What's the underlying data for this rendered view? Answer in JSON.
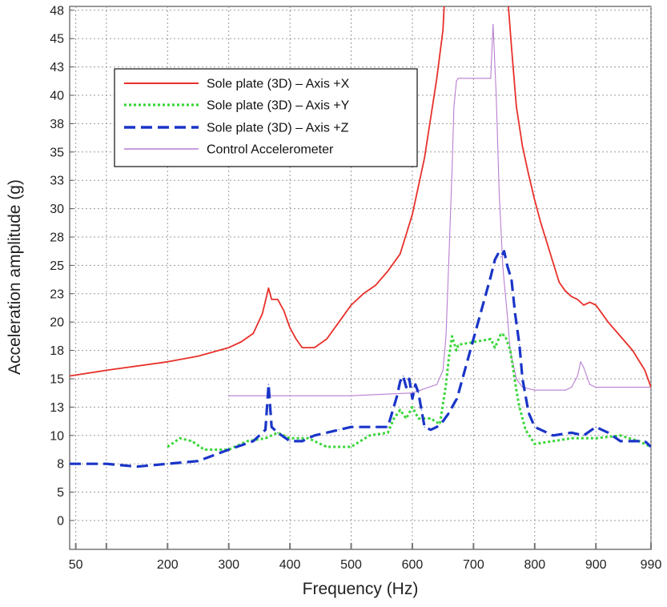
{
  "chart_data": {
    "type": "line",
    "xlabel": "Frequency (Hz)",
    "ylabel": "Acceleration amplitude (g)",
    "xlim": [
      40,
      990
    ],
    "x_ticks": [
      50,
      100,
      200,
      300,
      400,
      500,
      600,
      700,
      800,
      900,
      990
    ],
    "x_tick_labels": [
      "50",
      "",
      "200",
      "300",
      "400",
      "500",
      "600",
      "700",
      "800",
      "900",
      "990"
    ],
    "y_tick_labels": [
      "0",
      "5",
      "8",
      "10",
      "13",
      "15",
      "18",
      "20",
      "23",
      "25",
      "28",
      "30",
      "33",
      "35",
      "38",
      "40",
      "43",
      "45",
      "48"
    ],
    "y_scale": "index-of-labels (non-uniform)",
    "grid": true,
    "legend_position": "top-left",
    "series": [
      {
        "name": "Sole plate (3D) – Axis +X",
        "color": "#e8302a",
        "style": "solid",
        "points": [
          [
            40,
            5.1
          ],
          [
            100,
            5.3
          ],
          [
            200,
            5.6
          ],
          [
            250,
            5.8
          ],
          [
            300,
            6.1
          ],
          [
            320,
            6.3
          ],
          [
            340,
            6.6
          ],
          [
            355,
            7.3
          ],
          [
            365,
            8.2
          ],
          [
            370,
            7.8
          ],
          [
            380,
            7.8
          ],
          [
            390,
            7.4
          ],
          [
            400,
            6.8
          ],
          [
            410,
            6.4
          ],
          [
            420,
            6.1
          ],
          [
            440,
            6.1
          ],
          [
            460,
            6.4
          ],
          [
            480,
            7.0
          ],
          [
            500,
            7.6
          ],
          [
            520,
            8.0
          ],
          [
            540,
            8.3
          ],
          [
            560,
            8.8
          ],
          [
            580,
            9.4
          ],
          [
            600,
            10.8
          ],
          [
            620,
            12.8
          ],
          [
            640,
            15.6
          ],
          [
            650,
            17.3
          ],
          [
            655,
            19.4
          ],
          [
            662,
            20.8
          ],
          [
            670,
            22.6
          ],
          [
            675,
            26.0
          ],
          [
            678,
            26.6
          ],
          [
            730,
            26.6
          ],
          [
            736,
            24.7
          ],
          [
            742,
            22.7
          ],
          [
            748,
            20.6
          ],
          [
            755,
            18.7
          ],
          [
            762,
            16.7
          ],
          [
            770,
            14.6
          ],
          [
            780,
            13.2
          ],
          [
            790,
            12.2
          ],
          [
            800,
            11.3
          ],
          [
            810,
            10.5
          ],
          [
            820,
            9.8
          ],
          [
            830,
            9.1
          ],
          [
            840,
            8.4
          ],
          [
            850,
            8.1
          ],
          [
            860,
            7.9
          ],
          [
            870,
            7.8
          ],
          [
            880,
            7.6
          ],
          [
            890,
            7.7
          ],
          [
            900,
            7.6
          ],
          [
            920,
            7.0
          ],
          [
            940,
            6.5
          ],
          [
            960,
            6.0
          ],
          [
            980,
            5.3
          ],
          [
            990,
            4.7
          ]
        ]
      },
      {
        "name": "Sole plate (3D) – Axis +Y",
        "color": "#3ad63a",
        "style": "dotted",
        "points": [
          [
            200,
            2.6
          ],
          [
            220,
            2.9
          ],
          [
            240,
            2.8
          ],
          [
            260,
            2.5
          ],
          [
            300,
            2.5
          ],
          [
            330,
            2.8
          ],
          [
            360,
            2.9
          ],
          [
            380,
            3.1
          ],
          [
            400,
            2.9
          ],
          [
            430,
            2.9
          ],
          [
            460,
            2.6
          ],
          [
            500,
            2.6
          ],
          [
            530,
            3.0
          ],
          [
            560,
            3.1
          ],
          [
            570,
            3.6
          ],
          [
            580,
            3.9
          ],
          [
            590,
            3.6
          ],
          [
            600,
            4.0
          ],
          [
            610,
            3.6
          ],
          [
            630,
            3.6
          ],
          [
            645,
            3.4
          ],
          [
            655,
            4.8
          ],
          [
            660,
            5.8
          ],
          [
            665,
            6.5
          ],
          [
            672,
            6.0
          ],
          [
            675,
            6.2
          ],
          [
            728,
            6.4
          ],
          [
            735,
            6.1
          ],
          [
            745,
            6.6
          ],
          [
            752,
            6.5
          ],
          [
            760,
            6.0
          ],
          [
            770,
            4.6
          ],
          [
            775,
            4.0
          ],
          [
            785,
            3.2
          ],
          [
            800,
            2.7
          ],
          [
            830,
            2.8
          ],
          [
            860,
            2.9
          ],
          [
            900,
            2.9
          ],
          [
            940,
            3.0
          ],
          [
            970,
            2.8
          ],
          [
            990,
            2.6
          ]
        ]
      },
      {
        "name": "Sole plate (3D) – Axis +Z",
        "color": "#1a35c8",
        "style": "dashed",
        "points": [
          [
            40,
            2.0
          ],
          [
            100,
            2.0
          ],
          [
            150,
            1.9
          ],
          [
            200,
            2.0
          ],
          [
            250,
            2.1
          ],
          [
            300,
            2.5
          ],
          [
            340,
            2.8
          ],
          [
            360,
            3.2
          ],
          [
            365,
            4.8
          ],
          [
            370,
            3.3
          ],
          [
            380,
            3.1
          ],
          [
            400,
            2.8
          ],
          [
            420,
            2.8
          ],
          [
            440,
            3.0
          ],
          [
            460,
            3.1
          ],
          [
            480,
            3.2
          ],
          [
            500,
            3.3
          ],
          [
            520,
            3.3
          ],
          [
            540,
            3.3
          ],
          [
            560,
            3.3
          ],
          [
            575,
            4.4
          ],
          [
            580,
            4.9
          ],
          [
            585,
            5.1
          ],
          [
            590,
            4.7
          ],
          [
            595,
            5.0
          ],
          [
            600,
            4.3
          ],
          [
            605,
            4.8
          ],
          [
            610,
            4.5
          ],
          [
            615,
            3.9
          ],
          [
            620,
            3.3
          ],
          [
            630,
            3.2
          ],
          [
            640,
            3.3
          ],
          [
            650,
            3.5
          ],
          [
            660,
            3.8
          ],
          [
            670,
            4.2
          ],
          [
            673,
            4.3
          ],
          [
            728,
            8.6
          ],
          [
            735,
            9.2
          ],
          [
            740,
            9.4
          ],
          [
            745,
            9.3
          ],
          [
            750,
            9.5
          ],
          [
            755,
            9.0
          ],
          [
            762,
            8.5
          ],
          [
            768,
            7.3
          ],
          [
            775,
            6.2
          ],
          [
            780,
            5.0
          ],
          [
            790,
            3.8
          ],
          [
            800,
            3.3
          ],
          [
            830,
            3.0
          ],
          [
            860,
            3.1
          ],
          [
            880,
            3.0
          ],
          [
            900,
            3.3
          ],
          [
            920,
            3.1
          ],
          [
            940,
            2.8
          ],
          [
            960,
            2.8
          ],
          [
            980,
            2.8
          ],
          [
            990,
            2.6
          ]
        ]
      },
      {
        "name": "Control Accelerometer",
        "color": "#b87fd0",
        "style": "solid-thin",
        "points": [
          [
            300,
            4.4
          ],
          [
            400,
            4.4
          ],
          [
            500,
            4.4
          ],
          [
            600,
            4.5
          ],
          [
            640,
            4.8
          ],
          [
            650,
            5.3
          ],
          [
            655,
            6.5
          ],
          [
            660,
            9.4
          ],
          [
            665,
            12.4
          ],
          [
            668,
            14.6
          ],
          [
            672,
            15.5
          ],
          [
            675,
            15.6
          ],
          [
            728,
            15.6
          ],
          [
            732,
            17.5
          ],
          [
            737,
            15.0
          ],
          [
            742,
            11.5
          ],
          [
            748,
            8.9
          ],
          [
            755,
            7.3
          ],
          [
            760,
            6.0
          ],
          [
            770,
            5.0
          ],
          [
            780,
            4.7
          ],
          [
            800,
            4.6
          ],
          [
            850,
            4.6
          ],
          [
            860,
            4.7
          ],
          [
            870,
            5.1
          ],
          [
            875,
            5.6
          ],
          [
            880,
            5.4
          ],
          [
            890,
            4.8
          ],
          [
            900,
            4.7
          ],
          [
            990,
            4.7
          ]
        ]
      }
    ]
  }
}
